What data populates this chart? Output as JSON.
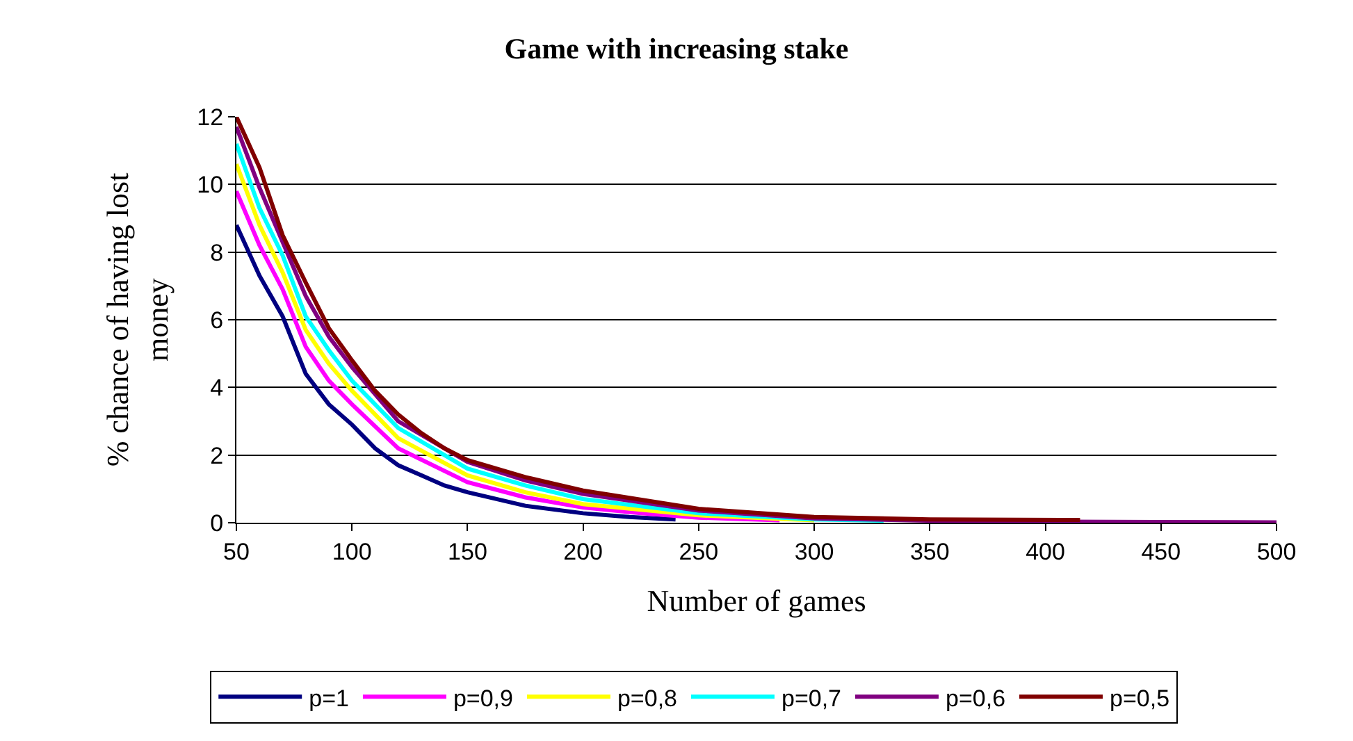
{
  "chart_data": {
    "type": "line",
    "title": "Game with increasing stake",
    "xlabel": "Number of games",
    "ylabel": "% chance of having lost money",
    "xlim": [
      50,
      500
    ],
    "xticks": [
      50,
      100,
      150,
      200,
      250,
      300,
      350,
      400,
      450,
      500
    ],
    "ylim": [
      0,
      12
    ],
    "yticks": [
      0,
      2,
      4,
      6,
      8,
      10,
      12
    ],
    "grid": "y",
    "legend": "bottom",
    "marker": "none",
    "line_style": "solid",
    "series": [
      {
        "name": "p=1",
        "color": "#000080",
        "x": [
          50,
          60,
          70,
          80,
          90,
          100,
          110,
          120,
          130,
          140,
          150,
          175,
          200,
          220,
          240
        ],
        "values": [
          8.8,
          7.3,
          6.1,
          4.4,
          3.5,
          2.9,
          2.2,
          1.7,
          1.4,
          1.1,
          0.9,
          0.5,
          0.28,
          0.17,
          0.1
        ]
      },
      {
        "name": "p=0,9",
        "color": "#ff00ff",
        "x": [
          50,
          60,
          70,
          80,
          90,
          100,
          120,
          150,
          175,
          200,
          225,
          250,
          285
        ],
        "values": [
          9.8,
          8.2,
          6.9,
          5.2,
          4.2,
          3.5,
          2.2,
          1.2,
          0.75,
          0.45,
          0.28,
          0.15,
          0.07
        ]
      },
      {
        "name": "p=0,8",
        "color": "#ffff00",
        "x": [
          50,
          60,
          70,
          80,
          90,
          100,
          120,
          150,
          175,
          200,
          250,
          300
        ],
        "values": [
          10.6,
          8.8,
          7.4,
          5.7,
          4.7,
          3.9,
          2.5,
          1.4,
          0.9,
          0.55,
          0.22,
          0.07
        ]
      },
      {
        "name": "p=0,7",
        "color": "#00ffff",
        "x": [
          50,
          60,
          70,
          80,
          90,
          100,
          120,
          150,
          175,
          200,
          250,
          300,
          330
        ],
        "values": [
          11.2,
          9.3,
          7.9,
          6.1,
          5.1,
          4.2,
          2.8,
          1.6,
          1.1,
          0.7,
          0.28,
          0.1,
          0.06
        ]
      },
      {
        "name": "p=0,6",
        "color": "#800080",
        "x": [
          50,
          60,
          70,
          80,
          90,
          100,
          120,
          150,
          175,
          200,
          250,
          300,
          350,
          400,
          450,
          500
        ],
        "values": [
          11.7,
          9.9,
          8.3,
          6.7,
          5.5,
          4.6,
          3.0,
          1.8,
          1.25,
          0.85,
          0.36,
          0.13,
          0.06,
          0.03,
          0.02,
          0.01
        ]
      },
      {
        "name": "p=0,5",
        "color": "#800000",
        "x": [
          50,
          60,
          70,
          80,
          90,
          100,
          110,
          120,
          130,
          140,
          150,
          175,
          200,
          250,
          300,
          350,
          415
        ],
        "values": [
          12,
          10.5,
          8.5,
          7.1,
          5.75,
          4.8,
          3.9,
          3.2,
          2.65,
          2.2,
          1.85,
          1.35,
          0.95,
          0.41,
          0.17,
          0.1,
          0.08
        ]
      }
    ]
  }
}
